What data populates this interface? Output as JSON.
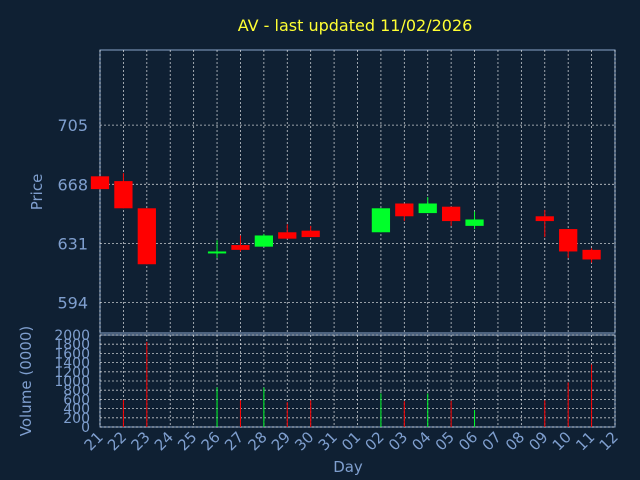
{
  "title": "AV - last updated 11/02/2026",
  "colors": {
    "background": "#0f2033",
    "title": "#ffff33",
    "axis_text": "#7f9fcf",
    "up": "#00ff2a",
    "down": "#ff0000",
    "grid": "#ffffff",
    "frame": "#8aa5c8"
  },
  "chart_data": [
    {
      "type": "candlestick",
      "ylabel": "Price",
      "ylim": [
        575,
        752
      ],
      "ytick_labels": [
        "594",
        "631",
        "668",
        "705"
      ],
      "grid": true,
      "x_days": [
        "21",
        "22",
        "23",
        "24",
        "25",
        "26",
        "27",
        "28",
        "29",
        "30",
        "31",
        "01",
        "02",
        "03",
        "04",
        "05",
        "06",
        "07",
        "08",
        "09",
        "10",
        "11",
        "12"
      ],
      "candles": [
        {
          "day": "21",
          "open": 673,
          "high": 673,
          "low": 665,
          "close": 665
        },
        {
          "day": "22",
          "open": 670,
          "high": 675,
          "low": 653,
          "close": 653
        },
        {
          "day": "23",
          "open": 653,
          "high": 653,
          "low": 618,
          "close": 618
        },
        {
          "day": "26",
          "open": 625,
          "high": 633,
          "low": 622,
          "close": 626
        },
        {
          "day": "27",
          "open": 630,
          "high": 636,
          "low": 626,
          "close": 627
        },
        {
          "day": "28",
          "open": 629,
          "high": 637,
          "low": 629,
          "close": 636
        },
        {
          "day": "29",
          "open": 638,
          "high": 643,
          "low": 634,
          "close": 634
        },
        {
          "day": "30",
          "open": 639,
          "high": 642,
          "low": 635,
          "close": 635
        },
        {
          "day": "02",
          "open": 638,
          "high": 653,
          "low": 638,
          "close": 653
        },
        {
          "day": "03",
          "open": 656,
          "high": 656,
          "low": 645,
          "close": 648
        },
        {
          "day": "04",
          "open": 650,
          "high": 660,
          "low": 650,
          "close": 656
        },
        {
          "day": "05",
          "open": 654,
          "high": 654,
          "low": 642,
          "close": 645
        },
        {
          "day": "06",
          "open": 642,
          "high": 651,
          "low": 640,
          "close": 646
        },
        {
          "day": "09",
          "open": 648,
          "high": 652,
          "low": 635,
          "close": 645
        },
        {
          "day": "10",
          "open": 640,
          "high": 640,
          "low": 622,
          "close": 626
        },
        {
          "day": "11",
          "open": 627,
          "high": 628,
          "low": 619,
          "close": 621
        }
      ]
    },
    {
      "type": "bar",
      "xlabel": "Day",
      "ylabel": "Volume (0000)",
      "ylim": [
        0,
        2000
      ],
      "ytick_labels": [
        "0",
        "200",
        "400",
        "600",
        "800",
        "1000",
        "1200",
        "1400",
        "1600",
        "1800",
        "2000"
      ],
      "bars": [
        {
          "day": "21",
          "value": 0,
          "direction": "down"
        },
        {
          "day": "22",
          "value": 590,
          "direction": "down"
        },
        {
          "day": "23",
          "value": 1850,
          "direction": "down"
        },
        {
          "day": "26",
          "value": 860,
          "direction": "up"
        },
        {
          "day": "27",
          "value": 580,
          "direction": "down"
        },
        {
          "day": "28",
          "value": 860,
          "direction": "up"
        },
        {
          "day": "29",
          "value": 540,
          "direction": "down"
        },
        {
          "day": "30",
          "value": 580,
          "direction": "down"
        },
        {
          "day": "02",
          "value": 730,
          "direction": "up"
        },
        {
          "day": "03",
          "value": 560,
          "direction": "down"
        },
        {
          "day": "04",
          "value": 730,
          "direction": "up"
        },
        {
          "day": "05",
          "value": 570,
          "direction": "down"
        },
        {
          "day": "06",
          "value": 370,
          "direction": "up"
        },
        {
          "day": "09",
          "value": 580,
          "direction": "down"
        },
        {
          "day": "10",
          "value": 970,
          "direction": "down"
        },
        {
          "day": "11",
          "value": 1360,
          "direction": "down"
        }
      ]
    }
  ]
}
